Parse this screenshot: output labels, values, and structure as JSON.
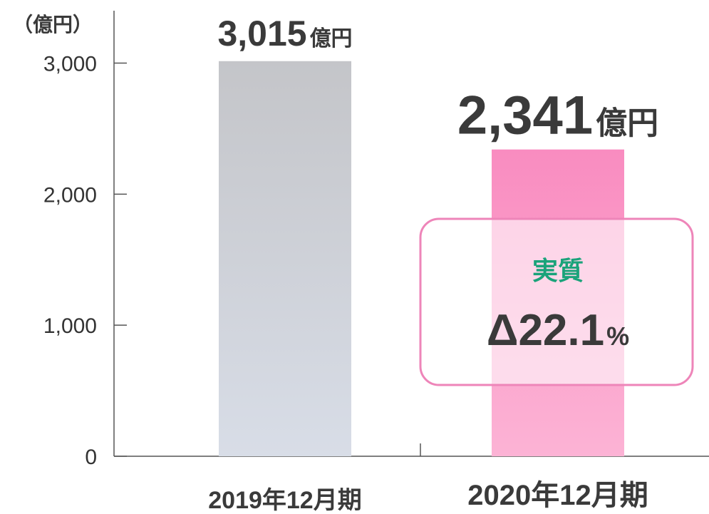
{
  "chart_data": {
    "type": "bar",
    "unit_label": "（億円）",
    "categories": [
      "2019年12月期",
      "2020年12月期"
    ],
    "values": [
      3015,
      2341
    ],
    "value_labels": [
      "3,015",
      "2,341"
    ],
    "value_label_unit": "億円",
    "colors": [
      "#c4c5c9",
      "#f98cc0"
    ],
    "ylim": [
      0,
      3400
    ],
    "yticks": [
      0,
      {
        "value": 1000,
        "label": "1,000"
      },
      {
        "value": 2000,
        "label": "2,000"
      },
      {
        "value": 3000,
        "label": "3,000"
      }
    ],
    "annotation": {
      "title": "実質",
      "value": "Δ22.1",
      "unit": "%"
    }
  }
}
